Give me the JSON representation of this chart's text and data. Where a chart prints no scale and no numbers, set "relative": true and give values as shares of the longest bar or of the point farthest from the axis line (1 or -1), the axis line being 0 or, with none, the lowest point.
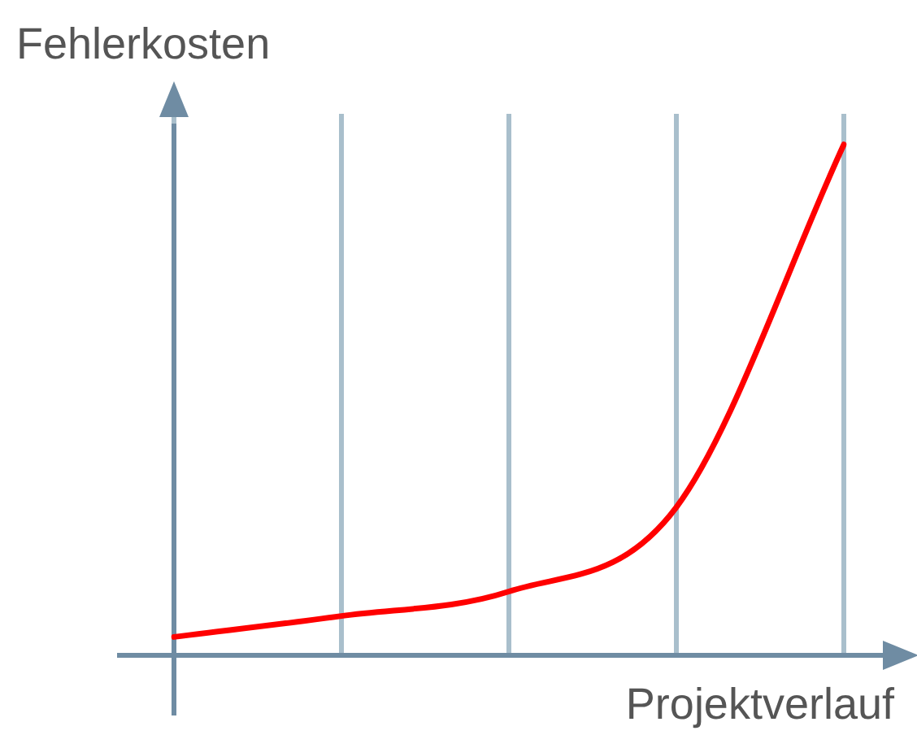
{
  "chart_data": {
    "type": "line",
    "relative": true,
    "xlabel": "Projektverlauf",
    "ylabel": "Fehlerkosten",
    "categories": [
      null,
      null,
      null,
      null,
      null
    ],
    "grid": "x",
    "marker": "none",
    "line_style": "solid",
    "series": [
      {
        "color": "#ff0000",
        "values": [
          0.036,
          0.077,
          0.125,
          0.29,
          1
        ]
      }
    ]
  }
}
